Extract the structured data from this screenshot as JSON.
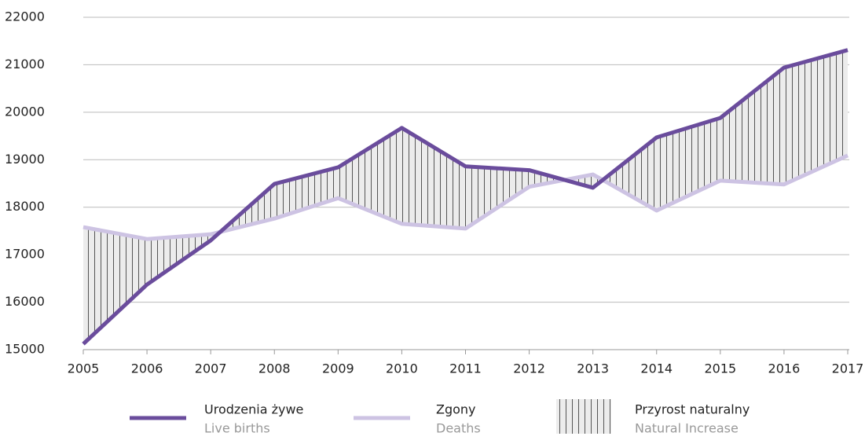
{
  "chart_data": {
    "type": "line",
    "x": [
      2005,
      2006,
      2007,
      2008,
      2009,
      2010,
      2011,
      2012,
      2013,
      2014,
      2015,
      2016,
      2017
    ],
    "series": [
      {
        "name": "Urodzenia żywe",
        "name_en": "Live births",
        "color": "#6a4c9c",
        "values": [
          15120,
          16370,
          17300,
          18490,
          18840,
          19670,
          18860,
          18780,
          18410,
          19470,
          19880,
          20940,
          21310
        ]
      },
      {
        "name": "Zgony",
        "name_en": "Deaths",
        "color": "#cdc3e3",
        "values": [
          17580,
          17330,
          17430,
          17760,
          18190,
          17650,
          17550,
          18430,
          18690,
          17930,
          18560,
          18480,
          19090
        ]
      }
    ],
    "fill_between": {
      "name": "Przyrost naturalny",
      "name_en": "Natural Increase"
    },
    "xlim": [
      2005,
      2017
    ],
    "xticks": [
      2005,
      2006,
      2007,
      2008,
      2009,
      2010,
      2011,
      2012,
      2013,
      2014,
      2015,
      2016,
      2017
    ],
    "ylim": [
      15000,
      22000
    ],
    "yticks": [
      15000,
      16000,
      17000,
      18000,
      19000,
      20000,
      21000,
      22000
    ],
    "grid": true
  }
}
